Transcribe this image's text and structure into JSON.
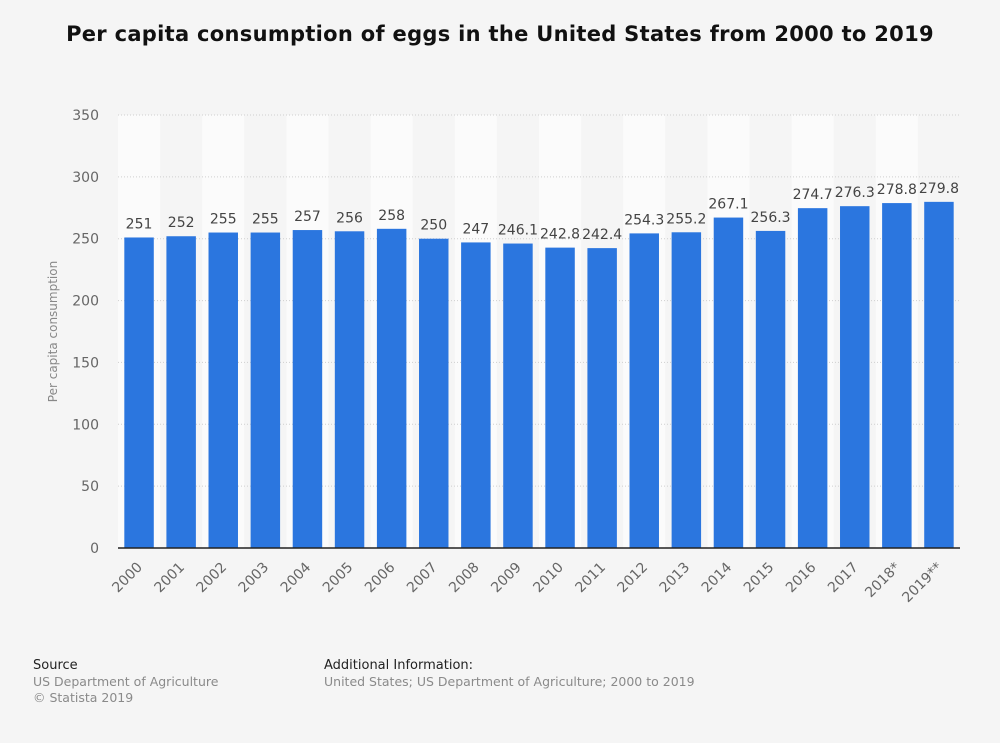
{
  "chart_data": {
    "type": "bar",
    "title": "Per capita consumption of eggs in the United States from 2000 to 2019",
    "xlabel": "",
    "ylabel": "Per capita consumption",
    "ylim": [
      0,
      350
    ],
    "yticks": [
      0,
      50,
      100,
      150,
      200,
      250,
      300,
      350
    ],
    "grid": true,
    "categories": [
      "2000",
      "2001",
      "2002",
      "2003",
      "2004",
      "2005",
      "2006",
      "2007",
      "2008",
      "2009",
      "2010",
      "2011",
      "2012",
      "2013",
      "2014",
      "2015",
      "2016",
      "2017",
      "2018*",
      "2019**"
    ],
    "values": [
      251,
      252,
      255,
      255,
      257,
      256,
      258,
      250,
      247,
      246.1,
      242.8,
      242.4,
      254.3,
      255.2,
      267.1,
      256.3,
      274.7,
      276.3,
      278.8,
      279.8
    ],
    "bar_color": "#2b76df"
  },
  "footer": {
    "source_heading": "Source",
    "source_line1": "US Department of Agriculture",
    "source_line2": "© Statista 2019",
    "info_heading": "Additional Information:",
    "info_text": "United States; US Department of Agriculture; 2000 to 2019"
  }
}
